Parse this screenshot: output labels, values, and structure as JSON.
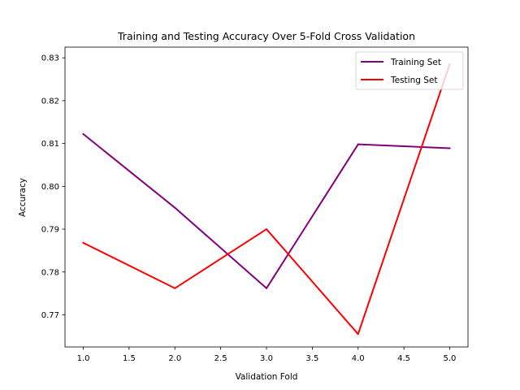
{
  "chart_data": {
    "type": "line",
    "title": "Training and Testing Accuracy Over 5-Fold Cross Validation",
    "xlabel": "Validation Fold",
    "ylabel": "Accuracy",
    "x": [
      1,
      2,
      3,
      4,
      5
    ],
    "xlim": [
      0.8,
      5.2
    ],
    "ylim": [
      0.7625,
      0.8325
    ],
    "xticks": [
      1.0,
      1.5,
      2.0,
      2.5,
      3.0,
      3.5,
      4.0,
      4.5,
      5.0
    ],
    "xtick_labels": [
      "1.0",
      "1.5",
      "2.0",
      "2.5",
      "3.0",
      "3.5",
      "4.0",
      "4.5",
      "5.0"
    ],
    "yticks": [
      0.77,
      0.78,
      0.79,
      0.8,
      0.81,
      0.82,
      0.83
    ],
    "ytick_labels": [
      "0.77",
      "0.78",
      "0.79",
      "0.80",
      "0.81",
      "0.82",
      "0.83"
    ],
    "grid": false,
    "legend_position": "top-right",
    "series": [
      {
        "name": "Training Set",
        "color": "#800080",
        "values": [
          0.8122,
          0.795,
          0.7762,
          0.8098,
          0.8089
        ]
      },
      {
        "name": "Testing Set",
        "color": "#ff0000",
        "values": [
          0.7868,
          0.7762,
          0.79,
          0.7655,
          0.8285
        ]
      }
    ]
  }
}
